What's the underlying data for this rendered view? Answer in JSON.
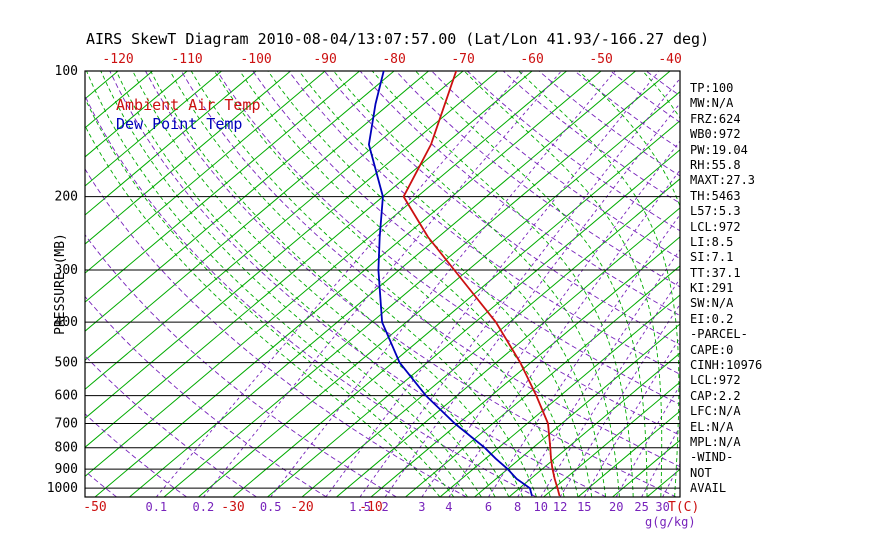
{
  "title": "AIRS SkewT Diagram 2010-08-04/13:07:57.00 (Lat/Lon 41.93/-166.27 deg)",
  "legend": {
    "air_temp_label": "Ambient Air Temp",
    "dew_point_label": "Dew Point Temp"
  },
  "axes": {
    "pressure_axis_label": "PRESSURE (MB)",
    "pressure_ticks": [
      100,
      200,
      300,
      400,
      500,
      600,
      700,
      800,
      900,
      1000
    ],
    "top_temperature_ticks": [
      -120,
      -110,
      -100,
      -90,
      -80,
      -70,
      -60,
      -50,
      -40
    ],
    "bottom_temperature_ticks": [
      -50,
      -30,
      -20,
      -10
    ],
    "temperature_unit_label": "T(C)",
    "mixing_ratio_unit_label": "g(g/kg)",
    "mixing_ratio_label_values": [
      0.1,
      0.2,
      0.5,
      1.5,
      2,
      3,
      4,
      6,
      8,
      10,
      12,
      15,
      20,
      25,
      30
    ]
  },
  "colors": {
    "isotherm_green": "#00ab00",
    "moist_adiabat_green": "#00ab00",
    "adiabat_purple": "#7722bb",
    "temperature_red": "#cc1111",
    "dew_point_blue": "#0000bb",
    "grid_black": "#000000"
  },
  "chart_data": {
    "type": "line",
    "diagram": "skew-t-log-p",
    "title": "AIRS SkewT Diagram 2010-08-04/13:07:57.00 (Lat/Lon 41.93/-166.27 deg)",
    "xlabel": "T(C)",
    "ylabel": "PRESSURE (MB)",
    "pressure_axis_mb": {
      "top": 100,
      "bottom": 1050,
      "scale": "log"
    },
    "isotherms_c": {
      "min": -160,
      "max": 40,
      "step": 5
    },
    "dry_adiabats_theta_c": {
      "min": -50,
      "max": 180,
      "step": 10
    },
    "moist_adiabats_thetaw_c": {
      "min": 0,
      "max": 44,
      "step": 2
    },
    "mixing_ratio_lines_g_kg": [
      0.1,
      0.2,
      0.5,
      1,
      1.5,
      2,
      3,
      4,
      6,
      8,
      10,
      12,
      15,
      20,
      25,
      30
    ],
    "series": [
      {
        "name": "Ambient Air Temp",
        "color_key": "temperature_red",
        "points_p_t": [
          [
            1040,
            17
          ],
          [
            1000,
            15.5
          ],
          [
            950,
            13.5
          ],
          [
            900,
            11.5
          ],
          [
            850,
            9.5
          ],
          [
            800,
            7.5
          ],
          [
            700,
            3
          ],
          [
            600,
            -3.5
          ],
          [
            500,
            -11.5
          ],
          [
            400,
            -22
          ],
          [
            300,
            -37
          ],
          [
            250,
            -46.5
          ],
          [
            200,
            -57
          ],
          [
            150,
            -62
          ],
          [
            100,
            -71
          ]
        ]
      },
      {
        "name": "Dew Point Temp",
        "color_key": "dew_point_blue",
        "points_p_t": [
          [
            1040,
            13
          ],
          [
            1000,
            11.5
          ],
          [
            950,
            8
          ],
          [
            900,
            5
          ],
          [
            850,
            1.5
          ],
          [
            800,
            -2
          ],
          [
            700,
            -10.5
          ],
          [
            600,
            -19.5
          ],
          [
            500,
            -29
          ],
          [
            400,
            -38.5
          ],
          [
            300,
            -48
          ],
          [
            250,
            -53.5
          ],
          [
            200,
            -60
          ],
          [
            150,
            -71
          ],
          [
            120,
            -77
          ],
          [
            100,
            -81.5
          ]
        ]
      }
    ]
  },
  "stats": [
    "TP:100",
    "MW:N/A",
    "FRZ:624",
    "WB0:972",
    "PW:19.04",
    "RH:55.8",
    "MAXT:27.3",
    "TH:5463",
    "L57:5.3",
    "LCL:972",
    "LI:8.5",
    "SI:7.1",
    "TT:37.1",
    "KI:291",
    "SW:N/A",
    "EI:0.2",
    "-PARCEL-",
    "CAPE:0",
    "CINH:10976",
    "LCL:972",
    "CAP:2.2",
    "LFC:N/A",
    "EL:N/A",
    "MPL:N/A",
    "-WIND-",
    "NOT",
    "AVAIL"
  ]
}
